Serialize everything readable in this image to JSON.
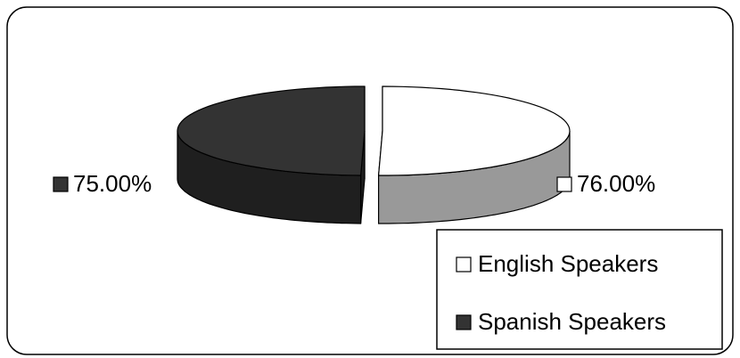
{
  "chart_data": {
    "type": "pie3d",
    "categories": [
      "English Speakers",
      "Spanish Speakers"
    ],
    "values": [
      76,
      75
    ],
    "value_labels": [
      "76.00%",
      "75.00%"
    ],
    "colors": [
      "#ffffff",
      "#333333"
    ],
    "legend": "bottom-right"
  }
}
